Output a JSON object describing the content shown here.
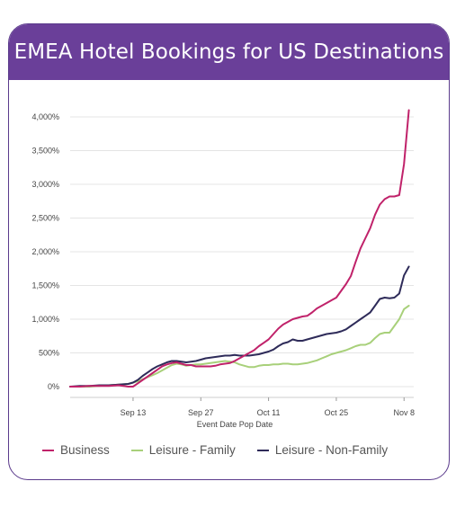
{
  "header": {
    "title": "EMEA Hotel Bookings for US Destinations"
  },
  "chart_data": {
    "type": "line",
    "title": "EMEA Hotel Bookings for US Destinations",
    "xlabel": "Event Date Pop Date",
    "ylabel": "",
    "x_ticks": [
      "Sep 13",
      "Sep 27",
      "Oct 11",
      "Oct 25",
      "Nov 8"
    ],
    "x_tick_days": [
      13,
      27,
      41,
      55,
      69
    ],
    "x_range_days": [
      0,
      71
    ],
    "y_ticks": [
      "0%",
      "500%",
      "1,000%",
      "1,500%",
      "2,000%",
      "2,500%",
      "3,000%",
      "3,500%",
      "4,000%"
    ],
    "ylim": [
      0,
      4000
    ],
    "grid": "horizontal",
    "legend": "bottom",
    "series": [
      {
        "name": "Business",
        "color": "#c0226a",
        "points": [
          [
            0,
            0
          ],
          [
            2,
            0
          ],
          [
            4,
            10
          ],
          [
            6,
            10
          ],
          [
            8,
            10
          ],
          [
            10,
            20
          ],
          [
            12,
            0
          ],
          [
            13,
            0
          ],
          [
            14,
            50
          ],
          [
            15,
            100
          ],
          [
            16,
            150
          ],
          [
            17,
            200
          ],
          [
            18,
            250
          ],
          [
            19,
            300
          ],
          [
            20,
            330
          ],
          [
            21,
            350
          ],
          [
            22,
            360
          ],
          [
            23,
            340
          ],
          [
            24,
            320
          ],
          [
            25,
            320
          ],
          [
            26,
            300
          ],
          [
            27,
            300
          ],
          [
            28,
            300
          ],
          [
            29,
            300
          ],
          [
            30,
            310
          ],
          [
            31,
            330
          ],
          [
            32,
            340
          ],
          [
            33,
            350
          ],
          [
            34,
            380
          ],
          [
            35,
            420
          ],
          [
            36,
            460
          ],
          [
            37,
            500
          ],
          [
            38,
            540
          ],
          [
            39,
            600
          ],
          [
            40,
            650
          ],
          [
            41,
            700
          ],
          [
            42,
            780
          ],
          [
            43,
            860
          ],
          [
            44,
            920
          ],
          [
            45,
            960
          ],
          [
            46,
            1000
          ],
          [
            47,
            1020
          ],
          [
            48,
            1040
          ],
          [
            49,
            1050
          ],
          [
            50,
            1100
          ],
          [
            51,
            1160
          ],
          [
            52,
            1200
          ],
          [
            53,
            1240
          ],
          [
            54,
            1280
          ],
          [
            55,
            1320
          ],
          [
            56,
            1420
          ],
          [
            57,
            1520
          ],
          [
            58,
            1640
          ],
          [
            59,
            1850
          ],
          [
            60,
            2050
          ],
          [
            61,
            2200
          ],
          [
            62,
            2350
          ],
          [
            63,
            2550
          ],
          [
            64,
            2700
          ],
          [
            65,
            2780
          ],
          [
            66,
            2820
          ],
          [
            67,
            2820
          ],
          [
            68,
            2840
          ],
          [
            69,
            3300
          ],
          [
            70,
            4100
          ]
        ]
      },
      {
        "name": "Leisure - Family",
        "color": "#a8d07a",
        "points": [
          [
            0,
            0
          ],
          [
            2,
            0
          ],
          [
            4,
            0
          ],
          [
            6,
            10
          ],
          [
            8,
            20
          ],
          [
            10,
            30
          ],
          [
            12,
            40
          ],
          [
            13,
            60
          ],
          [
            14,
            80
          ],
          [
            15,
            110
          ],
          [
            16,
            140
          ],
          [
            17,
            170
          ],
          [
            18,
            200
          ],
          [
            19,
            240
          ],
          [
            20,
            280
          ],
          [
            21,
            320
          ],
          [
            22,
            340
          ],
          [
            23,
            330
          ],
          [
            24,
            310
          ],
          [
            25,
            320
          ],
          [
            26,
            330
          ],
          [
            27,
            330
          ],
          [
            28,
            340
          ],
          [
            29,
            350
          ],
          [
            30,
            360
          ],
          [
            31,
            370
          ],
          [
            32,
            380
          ],
          [
            33,
            370
          ],
          [
            34,
            360
          ],
          [
            35,
            330
          ],
          [
            36,
            310
          ],
          [
            37,
            290
          ],
          [
            38,
            290
          ],
          [
            39,
            310
          ],
          [
            40,
            320
          ],
          [
            41,
            320
          ],
          [
            42,
            330
          ],
          [
            43,
            330
          ],
          [
            44,
            340
          ],
          [
            45,
            340
          ],
          [
            46,
            330
          ],
          [
            47,
            330
          ],
          [
            48,
            340
          ],
          [
            49,
            350
          ],
          [
            50,
            370
          ],
          [
            51,
            390
          ],
          [
            52,
            420
          ],
          [
            53,
            450
          ],
          [
            54,
            480
          ],
          [
            55,
            500
          ],
          [
            56,
            520
          ],
          [
            57,
            540
          ],
          [
            58,
            570
          ],
          [
            59,
            600
          ],
          [
            60,
            620
          ],
          [
            61,
            620
          ],
          [
            62,
            650
          ],
          [
            63,
            720
          ],
          [
            64,
            780
          ],
          [
            65,
            800
          ],
          [
            66,
            800
          ],
          [
            67,
            900
          ],
          [
            68,
            1000
          ],
          [
            69,
            1150
          ],
          [
            70,
            1200
          ]
        ]
      },
      {
        "name": "Leisure - Non-Family",
        "color": "#2e2b59",
        "points": [
          [
            0,
            0
          ],
          [
            2,
            10
          ],
          [
            4,
            10
          ],
          [
            6,
            20
          ],
          [
            8,
            20
          ],
          [
            10,
            30
          ],
          [
            12,
            40
          ],
          [
            13,
            60
          ],
          [
            14,
            100
          ],
          [
            15,
            160
          ],
          [
            16,
            210
          ],
          [
            17,
            260
          ],
          [
            18,
            300
          ],
          [
            19,
            330
          ],
          [
            20,
            360
          ],
          [
            21,
            380
          ],
          [
            22,
            380
          ],
          [
            23,
            370
          ],
          [
            24,
            360
          ],
          [
            25,
            370
          ],
          [
            26,
            380
          ],
          [
            27,
            400
          ],
          [
            28,
            420
          ],
          [
            29,
            430
          ],
          [
            30,
            440
          ],
          [
            31,
            450
          ],
          [
            32,
            460
          ],
          [
            33,
            460
          ],
          [
            34,
            470
          ],
          [
            35,
            460
          ],
          [
            36,
            460
          ],
          [
            37,
            460
          ],
          [
            38,
            470
          ],
          [
            39,
            480
          ],
          [
            40,
            500
          ],
          [
            41,
            520
          ],
          [
            42,
            550
          ],
          [
            43,
            600
          ],
          [
            44,
            640
          ],
          [
            45,
            660
          ],
          [
            46,
            700
          ],
          [
            47,
            680
          ],
          [
            48,
            680
          ],
          [
            49,
            700
          ],
          [
            50,
            720
          ],
          [
            51,
            740
          ],
          [
            52,
            760
          ],
          [
            53,
            780
          ],
          [
            54,
            790
          ],
          [
            55,
            800
          ],
          [
            56,
            820
          ],
          [
            57,
            850
          ],
          [
            58,
            900
          ],
          [
            59,
            950
          ],
          [
            60,
            1000
          ],
          [
            61,
            1050
          ],
          [
            62,
            1100
          ],
          [
            63,
            1200
          ],
          [
            64,
            1300
          ],
          [
            65,
            1320
          ],
          [
            66,
            1310
          ],
          [
            67,
            1320
          ],
          [
            68,
            1380
          ],
          [
            69,
            1650
          ],
          [
            70,
            1780
          ]
        ]
      }
    ]
  }
}
